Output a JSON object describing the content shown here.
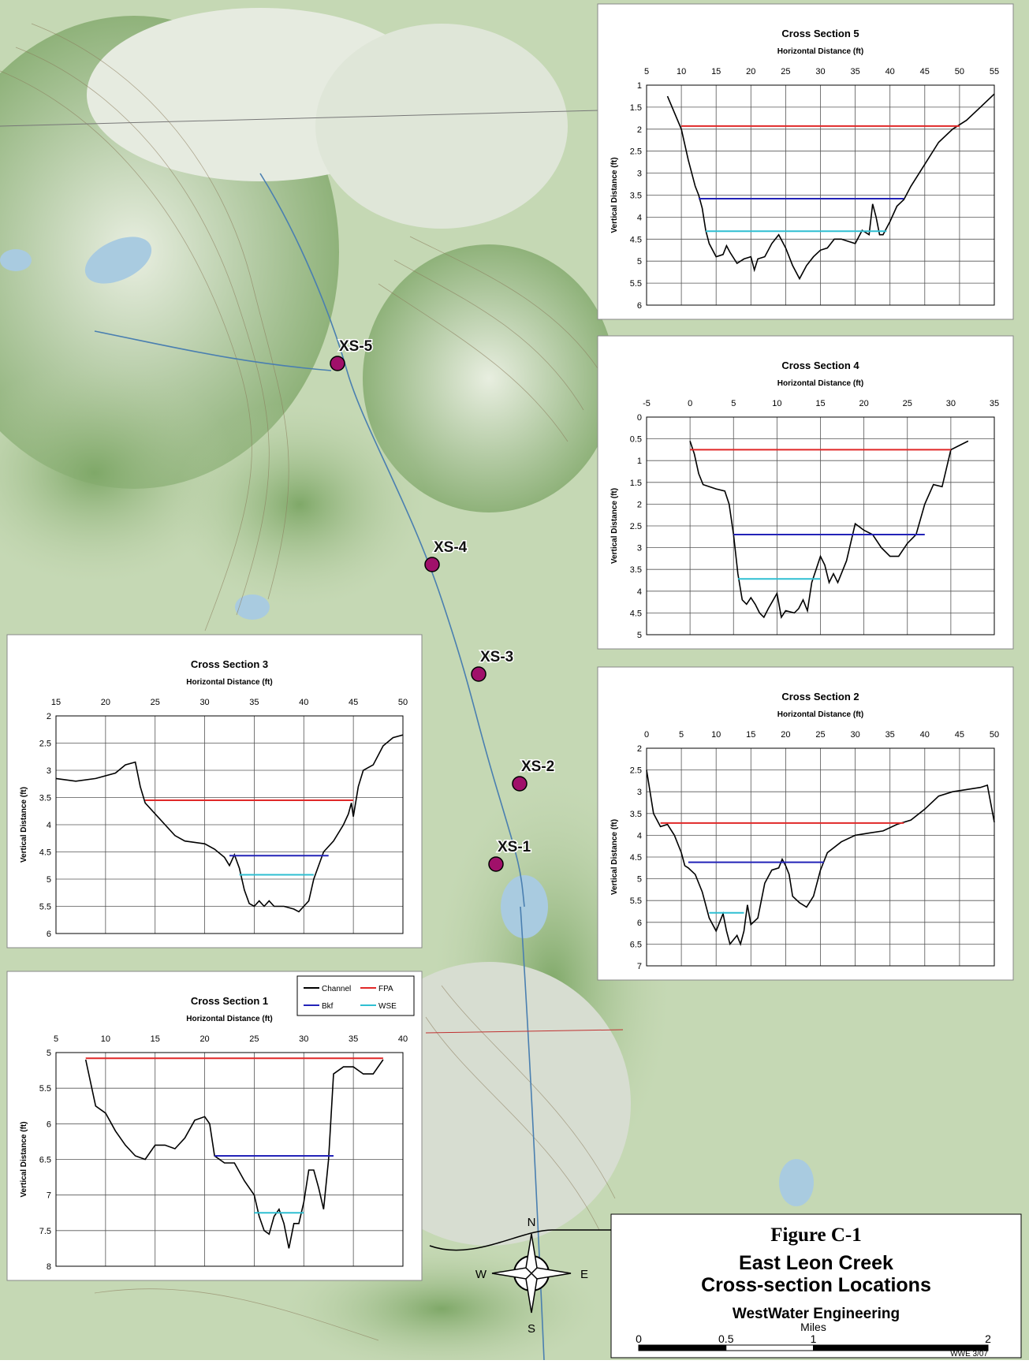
{
  "chart_data": [
    {
      "type": "line",
      "title": "Cross Section 1",
      "xlabel": "Horizontal Distance (ft)",
      "ylabel": "Vertical Distance (ft)",
      "xlim": [
        5,
        40
      ],
      "xticks": [
        5,
        10,
        15,
        20,
        25,
        30,
        35,
        40
      ],
      "ylim": [
        5,
        8
      ],
      "yticks": [
        5,
        5.5,
        6,
        6.5,
        7,
        7.5,
        8
      ],
      "y_inverted": true,
      "grid": true,
      "legend": "upper right",
      "series": [
        {
          "name": "Channel",
          "color": "#000000",
          "x": [
            8,
            9,
            10,
            11,
            12,
            13,
            14,
            15,
            16,
            17,
            18,
            19,
            20,
            20.5,
            21,
            22,
            23,
            24,
            25,
            25.5,
            26,
            26.5,
            27,
            27.5,
            28,
            28.5,
            29,
            29.5,
            30,
            30.5,
            31,
            31.5,
            32,
            32.5,
            33,
            34,
            35,
            36,
            37,
            38
          ],
          "values": [
            5.1,
            5.75,
            5.85,
            6.1,
            6.3,
            6.45,
            6.5,
            6.3,
            6.3,
            6.35,
            6.2,
            5.95,
            5.9,
            6.0,
            6.45,
            6.55,
            6.55,
            6.8,
            7.0,
            7.3,
            7.5,
            7.55,
            7.3,
            7.2,
            7.4,
            7.75,
            7.4,
            7.4,
            7.1,
            6.65,
            6.65,
            6.9,
            7.2,
            6.5,
            5.3,
            5.2,
            5.2,
            5.3,
            5.3,
            5.1
          ]
        },
        {
          "name": "FPA",
          "color": "#e02828",
          "x": [
            8,
            38
          ],
          "values": [
            5.08,
            5.08
          ]
        },
        {
          "name": "Bkf",
          "color": "#2323b8",
          "x": [
            21,
            33
          ],
          "values": [
            6.45,
            6.45
          ]
        },
        {
          "name": "WSE",
          "color": "#2fbfd2",
          "x": [
            25,
            30
          ],
          "values": [
            7.25,
            7.25
          ]
        }
      ]
    },
    {
      "type": "line",
      "title": "Cross Section 2",
      "xlabel": "Horizontal Distance (ft)",
      "ylabel": "Vertical Distance (ft)",
      "xlim": [
        0,
        50
      ],
      "xticks": [
        0,
        5,
        10,
        15,
        20,
        25,
        30,
        35,
        40,
        45,
        50
      ],
      "ylim": [
        2,
        7
      ],
      "yticks": [
        2,
        2.5,
        3,
        3.5,
        4,
        4.5,
        5,
        5.5,
        6,
        6.5,
        7
      ],
      "y_inverted": true,
      "grid": true,
      "series": [
        {
          "color": "#000000",
          "x": [
            0,
            1,
            2,
            3,
            4,
            5,
            5.5,
            6,
            7,
            8,
            9,
            10,
            11,
            11.5,
            12,
            13,
            13.5,
            14,
            14.5,
            15,
            16,
            17,
            18,
            19,
            19.5,
            20,
            20.5,
            21,
            22,
            23,
            24,
            25,
            26,
            28,
            30,
            32,
            34,
            36,
            38,
            40,
            42,
            44,
            46,
            48,
            49,
            50
          ],
          "values": [
            2.5,
            3.5,
            3.8,
            3.75,
            4.0,
            4.4,
            4.7,
            4.75,
            4.9,
            5.3,
            5.9,
            6.2,
            5.8,
            6.2,
            6.5,
            6.3,
            6.5,
            6.2,
            5.6,
            6.05,
            5.9,
            5.1,
            4.8,
            4.75,
            4.55,
            4.7,
            4.9,
            5.4,
            5.55,
            5.65,
            5.4,
            4.8,
            4.4,
            4.15,
            4.0,
            3.95,
            3.9,
            3.75,
            3.65,
            3.4,
            3.1,
            3.0,
            2.95,
            2.9,
            2.85,
            3.7
          ]
        },
        {
          "color": "#e02828",
          "x": [
            2,
            37
          ],
          "values": [
            3.72,
            3.72
          ]
        },
        {
          "color": "#2323b8",
          "x": [
            6,
            25.5
          ],
          "values": [
            4.62,
            4.62
          ]
        },
        {
          "color": "#2fbfd2",
          "x": [
            9,
            14
          ],
          "values": [
            5.78,
            5.78
          ]
        }
      ]
    },
    {
      "type": "line",
      "title": "Cross Section 3",
      "xlabel": "Horizontal Distance (ft)",
      "ylabel": "Vertical Distance (ft)",
      "xlim": [
        15,
        50
      ],
      "xticks": [
        15,
        20,
        25,
        30,
        35,
        40,
        45,
        50
      ],
      "ylim": [
        2,
        6
      ],
      "yticks": [
        2,
        2.5,
        3,
        3.5,
        4,
        4.5,
        5,
        5.5,
        6
      ],
      "y_inverted": true,
      "grid": true,
      "series": [
        {
          "color": "#000000",
          "x": [
            15,
            17,
            19,
            21,
            22,
            23,
            23.5,
            24,
            25,
            26,
            27,
            28,
            30,
            31,
            32,
            32.5,
            33,
            33.5,
            34,
            34.5,
            35,
            35.5,
            36,
            36.5,
            37,
            38,
            39,
            39.5,
            40,
            40.5,
            41,
            42,
            43,
            44,
            44.5,
            44.8,
            45,
            45.5,
            46,
            47,
            48,
            49,
            50
          ],
          "values": [
            3.15,
            3.2,
            3.15,
            3.05,
            2.9,
            2.85,
            3.3,
            3.6,
            3.8,
            4.0,
            4.2,
            4.3,
            4.35,
            4.45,
            4.6,
            4.75,
            4.55,
            4.8,
            5.2,
            5.45,
            5.5,
            5.4,
            5.5,
            5.4,
            5.5,
            5.5,
            5.55,
            5.6,
            5.5,
            5.4,
            5.0,
            4.5,
            4.3,
            4.0,
            3.8,
            3.6,
            3.85,
            3.3,
            3.0,
            2.9,
            2.55,
            2.4,
            2.35
          ]
        },
        {
          "color": "#e02828",
          "x": [
            24,
            45
          ],
          "values": [
            3.55,
            3.55
          ]
        },
        {
          "color": "#2323b8",
          "x": [
            32.5,
            42.5
          ],
          "values": [
            4.57,
            4.57
          ]
        },
        {
          "color": "#2fbfd2",
          "x": [
            33.5,
            41
          ],
          "values": [
            4.92,
            4.92
          ]
        }
      ]
    },
    {
      "type": "line",
      "title": "Cross Section 4",
      "xlabel": "Horizontal Distance (ft)",
      "ylabel": "Vertical Distance (ft)",
      "xlim": [
        -5,
        35
      ],
      "xticks": [
        -5,
        0,
        5,
        10,
        15,
        20,
        25,
        30,
        35
      ],
      "ylim": [
        0,
        5
      ],
      "yticks": [
        0,
        0.5,
        1,
        1.5,
        2,
        2.5,
        3,
        3.5,
        4,
        4.5,
        5
      ],
      "y_inverted": true,
      "grid": true,
      "series": [
        {
          "color": "#000000",
          "x": [
            0,
            0.5,
            1,
            1.5,
            3,
            4,
            4.5,
            5,
            5.5,
            6,
            6.5,
            7,
            7.5,
            8,
            8.5,
            9,
            10,
            10.5,
            11,
            12,
            12.5,
            13,
            13.5,
            14,
            14.5,
            15,
            15.5,
            16,
            16.5,
            17,
            18,
            19,
            20,
            21,
            22,
            23,
            24,
            25,
            26,
            27,
            28,
            29,
            30,
            31,
            32
          ],
          "values": [
            0.55,
            0.85,
            1.3,
            1.55,
            1.65,
            1.7,
            2.0,
            2.7,
            3.6,
            4.2,
            4.3,
            4.15,
            4.3,
            4.5,
            4.6,
            4.4,
            4.05,
            4.6,
            4.45,
            4.5,
            4.4,
            4.2,
            4.45,
            3.8,
            3.5,
            3.2,
            3.4,
            3.8,
            3.6,
            3.8,
            3.3,
            2.45,
            2.6,
            2.7,
            3.0,
            3.2,
            3.2,
            2.9,
            2.7,
            2.0,
            1.55,
            1.6,
            0.75,
            0.65,
            0.55
          ]
        },
        {
          "color": "#e02828",
          "x": [
            0,
            30
          ],
          "values": [
            0.75,
            0.75
          ]
        },
        {
          "color": "#2323b8",
          "x": [
            5,
            27
          ],
          "values": [
            2.7,
            2.7
          ]
        },
        {
          "color": "#2fbfd2",
          "x": [
            5.5,
            15
          ],
          "values": [
            3.72,
            3.72
          ]
        }
      ]
    },
    {
      "type": "line",
      "title": "Cross Section 5",
      "xlabel": "Horizontal Distance (ft)",
      "ylabel": "Vertical Distance (ft)",
      "xlim": [
        5,
        55
      ],
      "xticks": [
        5,
        10,
        15,
        20,
        25,
        30,
        35,
        40,
        45,
        50,
        55
      ],
      "ylim": [
        1,
        6
      ],
      "yticks": [
        1,
        1.5,
        2,
        2.5,
        3,
        3.5,
        4,
        4.5,
        5,
        5.5,
        6
      ],
      "y_inverted": true,
      "grid": true,
      "series": [
        {
          "color": "#000000",
          "x": [
            8,
            10,
            11,
            12,
            12.5,
            13,
            13.5,
            14,
            15,
            16,
            16.5,
            17,
            18,
            19,
            20,
            20.5,
            21,
            22,
            23,
            24,
            25,
            26,
            27,
            28,
            29,
            30,
            31,
            32,
            33,
            34,
            35,
            36,
            37,
            37.5,
            38,
            38.5,
            39,
            40,
            41,
            42,
            43,
            45,
            47,
            49,
            51,
            53,
            55
          ],
          "values": [
            1.25,
            2.0,
            2.7,
            3.3,
            3.5,
            3.8,
            4.3,
            4.6,
            4.9,
            4.85,
            4.65,
            4.8,
            5.05,
            4.95,
            4.9,
            5.2,
            4.95,
            4.9,
            4.6,
            4.4,
            4.7,
            5.1,
            5.4,
            5.1,
            4.9,
            4.75,
            4.7,
            4.5,
            4.5,
            4.55,
            4.6,
            4.3,
            4.4,
            3.7,
            4.0,
            4.4,
            4.4,
            4.1,
            3.75,
            3.6,
            3.3,
            2.8,
            2.3,
            2.0,
            1.8,
            1.5,
            1.2
          ]
        },
        {
          "color": "#e02828",
          "x": [
            10,
            50
          ],
          "values": [
            1.93,
            1.93
          ]
        },
        {
          "color": "#2323b8",
          "x": [
            12.5,
            42
          ],
          "values": [
            3.58,
            3.58
          ]
        },
        {
          "color": "#2fbfd2",
          "x": [
            13.5,
            39.5
          ],
          "values": [
            4.32,
            4.32
          ]
        }
      ]
    }
  ],
  "map": {
    "markers": [
      "XS-5",
      "XS-4",
      "XS-3",
      "XS-2",
      "XS-1"
    ],
    "compass": {
      "north": "N",
      "south": "S",
      "east": "E",
      "west": "W"
    }
  },
  "title_block": {
    "figure": "Figure C-1",
    "title": "East Leon Creek",
    "subtitle": "Cross-section Locations",
    "company": "WestWater Engineering",
    "scale_bar": {
      "unit": "Miles",
      "ticks": [
        0,
        0.5,
        1,
        2
      ]
    },
    "footer": "WWE 3/07"
  }
}
